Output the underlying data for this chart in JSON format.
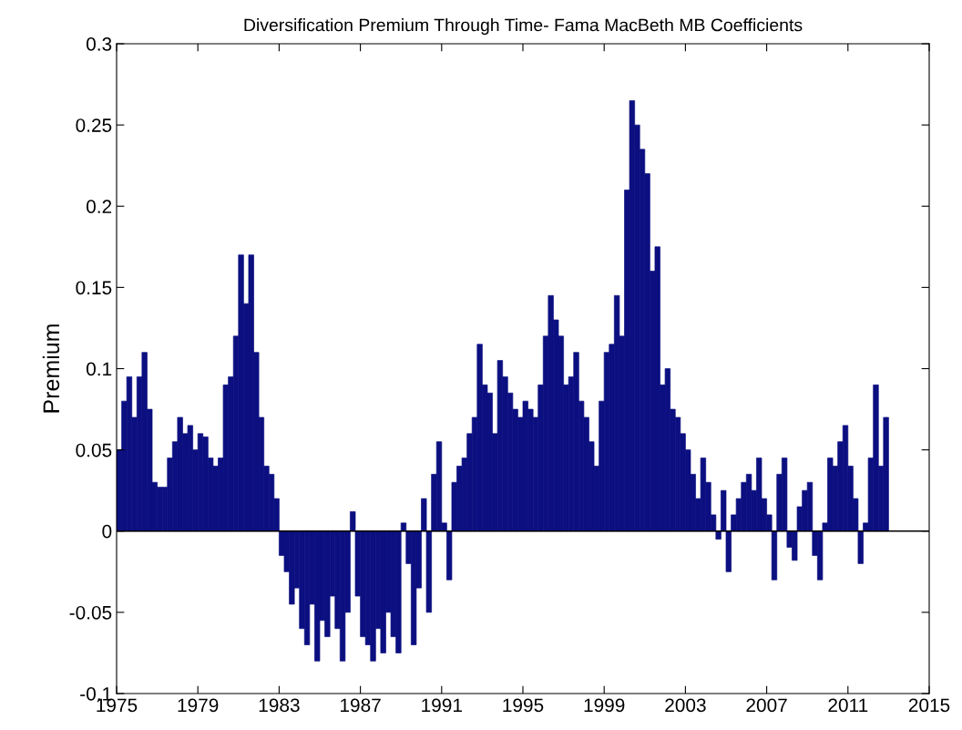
{
  "chart_data": {
    "type": "bar",
    "title": "Diversification Premium Through Time- Fama MacBeth MB Coefficients",
    "ylabel": "Premium",
    "color": "#0b0f80",
    "grid": false,
    "x": [
      1975.0,
      1975.25,
      1975.5,
      1975.75,
      1976.0,
      1976.25,
      1976.5,
      1976.75,
      1977.0,
      1977.25,
      1977.5,
      1977.75,
      1978.0,
      1978.25,
      1978.5,
      1978.75,
      1979.0,
      1979.25,
      1979.5,
      1979.75,
      1980.0,
      1980.25,
      1980.5,
      1980.75,
      1981.0,
      1981.25,
      1981.5,
      1981.75,
      1982.0,
      1982.25,
      1982.5,
      1982.75,
      1983.0,
      1983.25,
      1983.5,
      1983.75,
      1984.0,
      1984.25,
      1984.5,
      1984.75,
      1985.0,
      1985.25,
      1985.5,
      1985.75,
      1986.0,
      1986.25,
      1986.5,
      1986.75,
      1987.0,
      1987.25,
      1987.5,
      1987.75,
      1988.0,
      1988.25,
      1988.5,
      1988.75,
      1989.0,
      1989.25,
      1989.5,
      1989.75,
      1990.0,
      1990.25,
      1990.5,
      1990.75,
      1991.0,
      1991.25,
      1991.5,
      1991.75,
      1992.0,
      1992.25,
      1992.5,
      1992.75,
      1993.0,
      1993.25,
      1993.5,
      1993.75,
      1994.0,
      1994.25,
      1994.5,
      1994.75,
      1995.0,
      1995.25,
      1995.5,
      1995.75,
      1996.0,
      1996.25,
      1996.5,
      1996.75,
      1997.0,
      1997.25,
      1997.5,
      1997.75,
      1998.0,
      1998.25,
      1998.5,
      1998.75,
      1999.0,
      1999.25,
      1999.5,
      1999.75,
      2000.0,
      2000.25,
      2000.5,
      2000.75,
      2001.0,
      2001.25,
      2001.5,
      2001.75,
      2002.0,
      2002.25,
      2002.5,
      2002.75,
      2003.0,
      2003.25,
      2003.5,
      2003.75,
      2004.0,
      2004.25,
      2004.5,
      2004.75,
      2005.0,
      2005.25,
      2005.5,
      2005.75,
      2006.0,
      2006.25,
      2006.5,
      2006.75,
      2007.0,
      2007.25,
      2007.5,
      2007.75,
      2008.0,
      2008.25,
      2008.5,
      2008.75,
      2009.0,
      2009.25,
      2009.5,
      2009.75,
      2010.0,
      2010.25,
      2010.5,
      2010.75,
      2011.0,
      2011.25,
      2011.5,
      2011.75,
      2012.0,
      2012.25,
      2012.5,
      2012.75
    ],
    "values": [
      0.05,
      0.08,
      0.095,
      0.07,
      0.095,
      0.11,
      0.075,
      0.03,
      0.027,
      0.027,
      0.045,
      0.055,
      0.07,
      0.06,
      0.065,
      0.05,
      0.06,
      0.058,
      0.045,
      0.04,
      0.045,
      0.09,
      0.095,
      0.12,
      0.17,
      0.14,
      0.17,
      0.11,
      0.07,
      0.04,
      0.035,
      0.02,
      -0.015,
      -0.025,
      -0.045,
      -0.035,
      -0.06,
      -0.07,
      -0.045,
      -0.08,
      -0.055,
      -0.065,
      -0.04,
      -0.06,
      -0.08,
      -0.05,
      0.012,
      -0.04,
      -0.065,
      -0.07,
      -0.08,
      -0.06,
      -0.075,
      -0.05,
      -0.065,
      -0.075,
      0.005,
      -0.02,
      -0.07,
      -0.035,
      0.02,
      -0.05,
      0.035,
      0.055,
      0.005,
      -0.03,
      0.03,
      0.04,
      0.045,
      0.06,
      0.07,
      0.115,
      0.09,
      0.085,
      0.06,
      0.105,
      0.095,
      0.085,
      0.075,
      0.07,
      0.08,
      0.075,
      0.07,
      0.09,
      0.12,
      0.145,
      0.13,
      0.12,
      0.09,
      0.095,
      0.11,
      0.08,
      0.07,
      0.055,
      0.04,
      0.08,
      0.11,
      0.115,
      0.145,
      0.12,
      0.21,
      0.265,
      0.25,
      0.235,
      0.22,
      0.16,
      0.175,
      0.09,
      0.1,
      0.075,
      0.07,
      0.06,
      0.05,
      0.035,
      0.02,
      0.045,
      0.03,
      0.01,
      -0.005,
      0.025,
      -0.025,
      0.01,
      0.02,
      0.03,
      0.035,
      0.025,
      0.045,
      0.02,
      0.01,
      -0.03,
      0.035,
      0.045,
      -0.01,
      -0.018,
      0.015,
      0.025,
      0.03,
      -0.015,
      -0.03,
      0.005,
      0.045,
      0.04,
      0.055,
      0.065,
      0.04,
      0.02,
      -0.02,
      0.005,
      0.045,
      0.09,
      0.04,
      0.07
    ],
    "xlim": [
      1975,
      2015
    ],
    "xticks": [
      1975,
      1979,
      1983,
      1987,
      1991,
      1995,
      1999,
      2003,
      2007,
      2011,
      2015
    ],
    "ylim": [
      -0.1,
      0.3
    ],
    "yticks": [
      -0.1,
      -0.05,
      0,
      0.05,
      0.1,
      0.15,
      0.2,
      0.25,
      0.3
    ],
    "ref_lines": [
      {
        "axis": "y",
        "value": 0,
        "color": "#000000"
      }
    ]
  }
}
